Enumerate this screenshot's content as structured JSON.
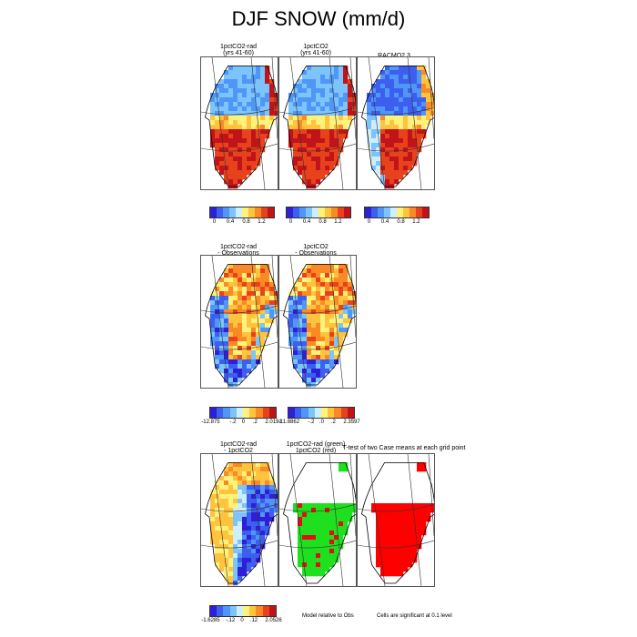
{
  "title": "DJF SNOW (mm/d)",
  "chart_data": [
    {
      "type": "heatmap",
      "panels": [
        {
          "title1": "1pctCO2-rad",
          "title2": "(yrs 41-60)",
          "pattern": "abs"
        },
        {
          "title1": "1pctCO2",
          "title2": "(yrs 41-60)",
          "pattern": "abs"
        },
        {
          "title1": "RACMO2.3",
          "title2": "",
          "pattern": "abs_obs"
        }
      ],
      "colorbars": [
        {
          "ticks": [
            "0",
            "0.4",
            "0.8",
            "1.2"
          ]
        },
        {
          "ticks": [
            "0",
            "0.4",
            "0.8",
            "1.2"
          ]
        },
        {
          "ticks": [
            "0",
            "0.4",
            "0.8",
            "1.2"
          ]
        }
      ],
      "palette": [
        "#2f1fd6",
        "#3d5ff0",
        "#4f96f7",
        "#7cc4fb",
        "#cfeefb",
        "#fff27a",
        "#ffc33d",
        "#fa8a25",
        "#e8421c",
        "#c0141a"
      ]
    },
    {
      "type": "heatmap",
      "panels": [
        {
          "title1": "1pctCO2-rad",
          "title2": "- Observations",
          "pattern": "bias"
        },
        {
          "title1": "1pctCO2",
          "title2": "- Observations",
          "pattern": "bias"
        }
      ],
      "colorbars": [
        {
          "ticks": [
            "-12.875",
            "-.2",
            "0",
            ".2",
            "2.0191"
          ]
        },
        {
          "ticks": [
            "-11.8862",
            "-.2",
            ".0",
            ".2",
            "2.3597"
          ]
        }
      ]
    },
    {
      "type": "heatmap",
      "panels": [
        {
          "title1": "1pctCO2-rad",
          "title2": "- 1pctCO2",
          "pattern": "diff"
        },
        {
          "title1": "1pctCO2-rad (green)",
          "title2": "1pctCO2 (red)",
          "pattern": "sig_green"
        },
        {
          "title1": "T-test of two Case means at each grid point",
          "title2": "",
          "pattern": "sig_red"
        }
      ],
      "colorbars": [
        {
          "ticks": [
            "-1.6285",
            "-.12",
            "0",
            ".12",
            "2.0526"
          ]
        }
      ],
      "notes": [
        "Model relative to Obs",
        "Cells are significant at 0.1 level"
      ]
    }
  ]
}
